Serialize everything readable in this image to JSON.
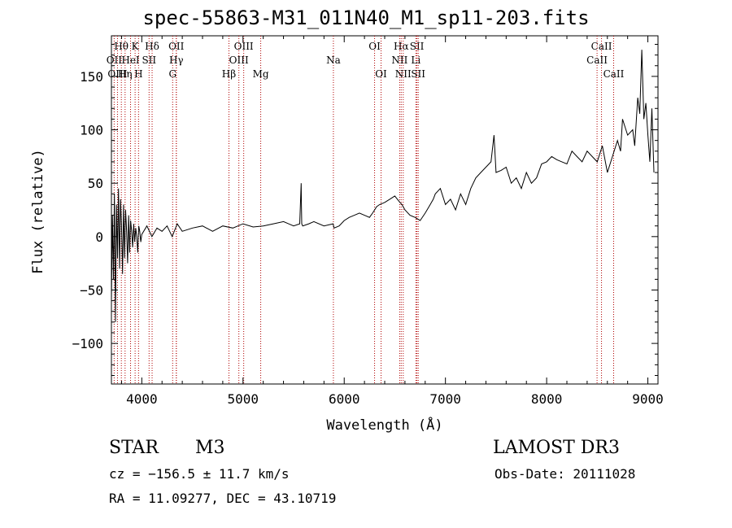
{
  "header": {
    "title": "spec-55863-M31_011N40_M1_sp11-203.fits"
  },
  "info": {
    "class": "STAR",
    "subclass": "M3",
    "survey": "LAMOST DR3",
    "cz": "cz = −156.5 ± 11.7 km/s",
    "obs_date": "Obs-Date: 20111028",
    "radec": "RA =  11.09277, DEC =  43.10719"
  },
  "chart_data": {
    "type": "line",
    "title": "spec-55863-M31_011N40_M1_sp11-203.fits",
    "xlabel": "Wavelength (Å)",
    "ylabel": "Flux (relative)",
    "xlim": [
      3700,
      9100
    ],
    "ylim": [
      -138,
      188
    ],
    "x_ticks": [
      4000,
      5000,
      6000,
      7000,
      8000,
      9000
    ],
    "y_ticks": [
      -100,
      -50,
      0,
      50,
      100,
      150
    ],
    "series": [
      {
        "name": "flux",
        "x": [
          3700,
          3710,
          3720,
          3730,
          3740,
          3750,
          3760,
          3770,
          3780,
          3790,
          3800,
          3810,
          3820,
          3830,
          3840,
          3850,
          3860,
          3870,
          3880,
          3890,
          3900,
          3910,
          3920,
          3930,
          3940,
          3950,
          3960,
          3970,
          3980,
          3990,
          4000,
          4050,
          4100,
          4150,
          4200,
          4250,
          4300,
          4350,
          4400,
          4500,
          4600,
          4700,
          4800,
          4900,
          5000,
          5100,
          5200,
          5300,
          5400,
          5450,
          5500,
          5560,
          5575,
          5577,
          5580,
          5590,
          5650,
          5700,
          5800,
          5890,
          5900,
          5950,
          6000,
          6050,
          6100,
          6150,
          6200,
          6250,
          6280,
          6300,
          6320,
          6350,
          6400,
          6450,
          6500,
          6550,
          6570,
          6600,
          6650,
          6700,
          6750,
          6800,
          6850,
          6880,
          6900,
          6950,
          7000,
          7050,
          7100,
          7150,
          7200,
          7250,
          7300,
          7350,
          7400,
          7450,
          7480,
          7500,
          7550,
          7600,
          7650,
          7700,
          7750,
          7800,
          7850,
          7900,
          7950,
          8000,
          8050,
          8100,
          8150,
          8200,
          8250,
          8300,
          8350,
          8400,
          8450,
          8500,
          8550,
          8600,
          8650,
          8700,
          8730,
          8750,
          8800,
          8850,
          8870,
          8900,
          8920,
          8940,
          8960,
          8980,
          9000,
          9020,
          9040,
          9060
        ],
        "values": [
          -60,
          20,
          -40,
          40,
          -80,
          30,
          -20,
          45,
          -30,
          35,
          10,
          -35,
          30,
          -20,
          25,
          5,
          -25,
          20,
          -15,
          15,
          5,
          -10,
          12,
          -5,
          8,
          0,
          -15,
          10,
          5,
          -5,
          2,
          10,
          0,
          8,
          5,
          10,
          0,
          12,
          5,
          8,
          10,
          5,
          10,
          8,
          12,
          9,
          10,
          12,
          14,
          12,
          10,
          12,
          50,
          30,
          12,
          10,
          12,
          14,
          10,
          12,
          8,
          10,
          15,
          18,
          20,
          22,
          20,
          18,
          22,
          25,
          28,
          30,
          32,
          35,
          38,
          32,
          30,
          25,
          20,
          18,
          15,
          22,
          30,
          35,
          40,
          45,
          30,
          35,
          25,
          40,
          30,
          45,
          55,
          60,
          65,
          70,
          95,
          60,
          62,
          65,
          50,
          55,
          45,
          60,
          50,
          55,
          68,
          70,
          75,
          72,
          70,
          68,
          80,
          75,
          70,
          80,
          75,
          70,
          85,
          60,
          75,
          90,
          80,
          110,
          95,
          100,
          85,
          130,
          115,
          175,
          110,
          125,
          95,
          70,
          120,
          60
        ]
      }
    ],
    "line_markers": {
      "row1": [
        {
          "label": "Hθ",
          "wave": 3798
        },
        {
          "label": "K",
          "wave": 3934
        },
        {
          "label": "Hδ",
          "wave": 4102
        },
        {
          "label": "OII",
          "wave": 4341
        },
        {
          "label": "OIII",
          "wave": 5007
        },
        {
          "label": "OI",
          "wave": 6300
        },
        {
          "label": "Hα",
          "wave": 6563
        },
        {
          "label": "SII",
          "wave": 6718
        },
        {
          "label": "CaII",
          "wave": 8542
        }
      ],
      "row2": [
        {
          "label": "OII",
          "wave": 3727
        },
        {
          "label": "HeI",
          "wave": 3889
        },
        {
          "label": "SII",
          "wave": 4072
        },
        {
          "label": "Hγ",
          "wave": 4341
        },
        {
          "label": "OIII",
          "wave": 4959
        },
        {
          "label": "Na",
          "wave": 5893
        },
        {
          "label": "NII",
          "wave": 6548
        },
        {
          "label": "Li",
          "wave": 6708
        },
        {
          "label": "CaII",
          "wave": 8498
        }
      ],
      "row3": [
        {
          "label": "OIII",
          "wave": 3760
        },
        {
          "label": "Hη",
          "wave": 3835
        },
        {
          "label": "H",
          "wave": 3968
        },
        {
          "label": "G",
          "wave": 4305
        },
        {
          "label": "Hβ",
          "wave": 4861
        },
        {
          "label": "Mg",
          "wave": 5175
        },
        {
          "label": "OI",
          "wave": 6364
        },
        {
          "label": "NII",
          "wave": 6583
        },
        {
          "label": "SII",
          "wave": 6731
        },
        {
          "label": "CaII",
          "wave": 8662
        }
      ]
    }
  }
}
